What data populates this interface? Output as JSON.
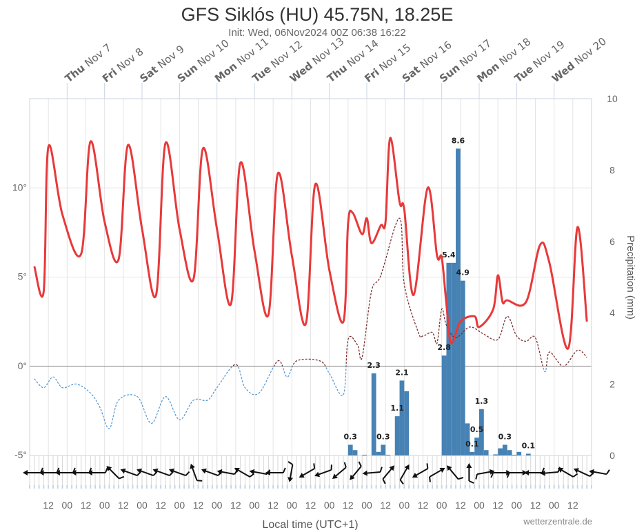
{
  "chart_data": {
    "type": "line",
    "title": "GFS Siklós (HU) 45.75N, 18.25E",
    "subtitle": "Init: Wed, 06Nov2024 00Z 06:38 16:22",
    "xlabel": "Local time (UTC+1)",
    "ylabel_right": "Precipitation (mm)",
    "credit": "wetterzentrale.de",
    "x_range": [
      "2024-11-06T00:00",
      "2024-11-21T00:00"
    ],
    "day_labels": [
      {
        "weekday": "Thu",
        "date": "Nov 7"
      },
      {
        "weekday": "Fri",
        "date": "Nov 8"
      },
      {
        "weekday": "Sat",
        "date": "Nov 9"
      },
      {
        "weekday": "Sun",
        "date": "Nov 10"
      },
      {
        "weekday": "Mon",
        "date": "Nov 11"
      },
      {
        "weekday": "Tue",
        "date": "Nov 12"
      },
      {
        "weekday": "Wed",
        "date": "Nov 13"
      },
      {
        "weekday": "Thu",
        "date": "Nov 14"
      },
      {
        "weekday": "Fri",
        "date": "Nov 15"
      },
      {
        "weekday": "Sat",
        "date": "Nov 16"
      },
      {
        "weekday": "Sun",
        "date": "Nov 17"
      },
      {
        "weekday": "Mon",
        "date": "Nov 18"
      },
      {
        "weekday": "Tue",
        "date": "Nov 19"
      },
      {
        "weekday": "Wed",
        "date": "Nov 20"
      }
    ],
    "hour_tick_labels": [
      "12",
      "00",
      "12",
      "00",
      "12",
      "00",
      "12",
      "00",
      "12",
      "00",
      "12",
      "00",
      "12",
      "00",
      "12",
      "00",
      "12",
      "00",
      "12",
      "00",
      "12",
      "00",
      "12",
      "00",
      "12",
      "00",
      "12",
      "00",
      "12"
    ],
    "y_left": {
      "range": [
        -5,
        15
      ],
      "ticks": [
        {
          "v": 10,
          "label": "10°"
        },
        {
          "v": 5,
          "label": "5°"
        },
        {
          "v": 0,
          "label": "0°"
        },
        {
          "v": -5,
          "label": "-5°"
        }
      ]
    },
    "y_right": {
      "range": [
        0,
        10
      ],
      "ticks": [
        "0",
        "2",
        "4",
        "6",
        "8",
        "10"
      ]
    },
    "grid": true,
    "colors": {
      "temperature": "#e8393a",
      "dewpoint_above0": "#7a2e2e",
      "dewpoint_below0": "#5b9bd5",
      "precipitation": "#4682b4",
      "wind": "#111111"
    },
    "series": [
      {
        "key": "temperature",
        "unit": "°C",
        "points": [
          [
            "2024-11-06T03:00",
            5.6
          ],
          [
            "2024-11-06T09:00",
            4.2
          ],
          [
            "2024-11-06T12:00",
            12.3
          ],
          [
            "2024-11-06T21:00",
            8.5
          ],
          [
            "2024-11-07T09:00",
            6.3
          ],
          [
            "2024-11-07T15:00",
            12.6
          ],
          [
            "2024-11-08T00:00",
            8.1
          ],
          [
            "2024-11-08T09:00",
            6.0
          ],
          [
            "2024-11-08T15:00",
            12.4
          ],
          [
            "2024-11-09T00:00",
            7.7
          ],
          [
            "2024-11-09T09:00",
            4.0
          ],
          [
            "2024-11-09T15:00",
            12.5
          ],
          [
            "2024-11-10T00:00",
            7.7
          ],
          [
            "2024-11-10T09:00",
            4.9
          ],
          [
            "2024-11-10T15:00",
            12.2
          ],
          [
            "2024-11-11T00:00",
            7.7
          ],
          [
            "2024-11-11T09:00",
            3.5
          ],
          [
            "2024-11-11T15:00",
            11.4
          ],
          [
            "2024-11-12T00:00",
            6.5
          ],
          [
            "2024-11-12T09:00",
            2.9
          ],
          [
            "2024-11-12T15:00",
            10.8
          ],
          [
            "2024-11-13T00:00",
            6.2
          ],
          [
            "2024-11-13T09:00",
            2.4
          ],
          [
            "2024-11-13T15:00",
            10.2
          ],
          [
            "2024-11-14T00:00",
            5.4
          ],
          [
            "2024-11-14T09:00",
            2.5
          ],
          [
            "2024-11-14T12:00",
            8.0
          ],
          [
            "2024-11-14T15:00",
            8.6
          ],
          [
            "2024-11-14T21:00",
            7.4
          ],
          [
            "2024-11-15T00:00",
            8.3
          ],
          [
            "2024-11-15T03:00",
            6.9
          ],
          [
            "2024-11-15T09:00",
            7.9
          ],
          [
            "2024-11-15T12:00",
            8.1
          ],
          [
            "2024-11-15T15:00",
            12.8
          ],
          [
            "2024-11-15T21:00",
            9.2
          ],
          [
            "2024-11-16T00:00",
            8.8
          ],
          [
            "2024-11-16T06:00",
            4.0
          ],
          [
            "2024-11-16T15:00",
            10.0
          ],
          [
            "2024-11-16T21:00",
            6.2
          ],
          [
            "2024-11-17T00:00",
            6.1
          ],
          [
            "2024-11-17T03:00",
            3.5
          ],
          [
            "2024-11-17T06:00",
            1.3
          ],
          [
            "2024-11-17T12:00",
            2.5
          ],
          [
            "2024-11-17T21:00",
            2.8
          ],
          [
            "2024-11-18T00:00",
            2.2
          ],
          [
            "2024-11-18T09:00",
            3.2
          ],
          [
            "2024-11-18T12:00",
            5.1
          ],
          [
            "2024-11-18T15:00",
            3.6
          ],
          [
            "2024-11-18T18:00",
            3.7
          ],
          [
            "2024-11-19T06:00",
            3.6
          ],
          [
            "2024-11-19T15:00",
            6.8
          ],
          [
            "2024-11-19T21:00",
            5.8
          ],
          [
            "2024-11-20T09:00",
            1.0
          ],
          [
            "2024-11-20T15:00",
            7.8
          ],
          [
            "2024-11-20T21:00",
            2.5
          ]
        ]
      },
      {
        "key": "dewpoint",
        "unit": "°C",
        "points": [
          [
            "2024-11-06T03:00",
            -0.7
          ],
          [
            "2024-11-06T09:00",
            -1.2
          ],
          [
            "2024-11-06T15:00",
            -0.6
          ],
          [
            "2024-11-06T21:00",
            -1.2
          ],
          [
            "2024-11-07T06:00",
            -1.0
          ],
          [
            "2024-11-07T15:00",
            -1.5
          ],
          [
            "2024-11-07T21:00",
            -2.3
          ],
          [
            "2024-11-08T03:00",
            -3.5
          ],
          [
            "2024-11-08T09:00",
            -1.9
          ],
          [
            "2024-11-08T21:00",
            -1.7
          ],
          [
            "2024-11-09T06:00",
            -3.2
          ],
          [
            "2024-11-09T15:00",
            -1.7
          ],
          [
            "2024-11-10T00:00",
            -3.0
          ],
          [
            "2024-11-10T09:00",
            -1.9
          ],
          [
            "2024-11-10T18:00",
            -1.9
          ],
          [
            "2024-11-11T00:00",
            -1.2
          ],
          [
            "2024-11-11T12:00",
            0.1
          ],
          [
            "2024-11-11T18:00",
            -1.2
          ],
          [
            "2024-11-12T03:00",
            -1.5
          ],
          [
            "2024-11-12T15:00",
            0.3
          ],
          [
            "2024-11-12T21:00",
            -0.6
          ],
          [
            "2024-11-13T03:00",
            0.3
          ],
          [
            "2024-11-13T18:00",
            0.3
          ],
          [
            "2024-11-14T00:00",
            -0.4
          ],
          [
            "2024-11-14T09:00",
            -1.6
          ],
          [
            "2024-11-14T12:00",
            1.5
          ],
          [
            "2024-11-14T18:00",
            1.2
          ],
          [
            "2024-11-14T21:00",
            0.5
          ],
          [
            "2024-11-15T03:00",
            4.2
          ],
          [
            "2024-11-15T09:00",
            5.1
          ],
          [
            "2024-11-15T21:00",
            8.3
          ],
          [
            "2024-11-16T00:00",
            4.6
          ],
          [
            "2024-11-16T09:00",
            1.9
          ],
          [
            "2024-11-16T12:00",
            1.7
          ],
          [
            "2024-11-16T18:00",
            1.9
          ],
          [
            "2024-11-16T21:00",
            1.3
          ],
          [
            "2024-11-17T00:00",
            3.2
          ],
          [
            "2024-11-17T03:00",
            2.3
          ],
          [
            "2024-11-17T09:00",
            1.6
          ],
          [
            "2024-11-17T18:00",
            2.2
          ],
          [
            "2024-11-18T03:00",
            1.8
          ],
          [
            "2024-11-18T12:00",
            1.5
          ],
          [
            "2024-11-18T18:00",
            2.8
          ],
          [
            "2024-11-19T00:00",
            1.7
          ],
          [
            "2024-11-19T06:00",
            1.4
          ],
          [
            "2024-11-19T12:00",
            1.6
          ],
          [
            "2024-11-19T18:00",
            -0.3
          ],
          [
            "2024-11-19T21:00",
            0.8
          ],
          [
            "2024-11-20T06:00",
            0.0
          ],
          [
            "2024-11-20T15:00",
            0.9
          ],
          [
            "2024-11-20T21:00",
            0.5
          ]
        ]
      },
      {
        "key": "precipitation",
        "type": "bar",
        "unit": "mm / 3h",
        "points": [
          [
            "2024-11-14T12:00",
            0.3,
            "0.3"
          ],
          [
            "2024-11-14T15:00",
            0.15,
            ""
          ],
          [
            "2024-11-14T21:00",
            0.02,
            ""
          ],
          [
            "2024-11-15T03:00",
            2.3,
            "2.3"
          ],
          [
            "2024-11-15T06:00",
            0.1,
            ""
          ],
          [
            "2024-11-15T09:00",
            0.3,
            "0.3"
          ],
          [
            "2024-11-15T12:00",
            0.02,
            ""
          ],
          [
            "2024-11-15T18:00",
            1.1,
            "1.1"
          ],
          [
            "2024-11-15T21:00",
            2.1,
            "2.1"
          ],
          [
            "2024-11-16T00:00",
            1.8,
            ""
          ],
          [
            "2024-11-17T00:00",
            2.8,
            "2.8"
          ],
          [
            "2024-11-17T03:00",
            5.4,
            "5.4"
          ],
          [
            "2024-11-17T06:00",
            5.4,
            ""
          ],
          [
            "2024-11-17T09:00",
            8.6,
            "8.6"
          ],
          [
            "2024-11-17T12:00",
            4.9,
            "4.9"
          ],
          [
            "2024-11-17T15:00",
            0.9,
            ""
          ],
          [
            "2024-11-17T18:00",
            0.1,
            "0.1"
          ],
          [
            "2024-11-17T21:00",
            0.5,
            "0.5"
          ],
          [
            "2024-11-18T00:00",
            1.3,
            "1.3"
          ],
          [
            "2024-11-18T03:00",
            0.15,
            ""
          ],
          [
            "2024-11-18T09:00",
            0.03,
            ""
          ],
          [
            "2024-11-18T12:00",
            0.2,
            ""
          ],
          [
            "2024-11-18T15:00",
            0.3,
            "0.3"
          ],
          [
            "2024-11-18T18:00",
            0.15,
            ""
          ],
          [
            "2024-11-18T21:00",
            0.02,
            ""
          ],
          [
            "2024-11-19T00:00",
            0.1,
            ""
          ],
          [
            "2024-11-19T06:00",
            0.05,
            "0.1"
          ]
        ]
      },
      {
        "key": "wind_from_deg",
        "values": [
          90,
          90,
          90,
          90,
          90,
          45,
          70,
          70,
          70,
          70,
          20,
          70,
          80,
          60,
          80,
          90,
          170,
          120,
          110,
          130,
          140,
          95,
          320,
          330,
          120,
          300,
          40,
          0,
          280,
          270,
          270,
          90,
          95,
          60,
          65,
          80
        ]
      }
    ]
  }
}
